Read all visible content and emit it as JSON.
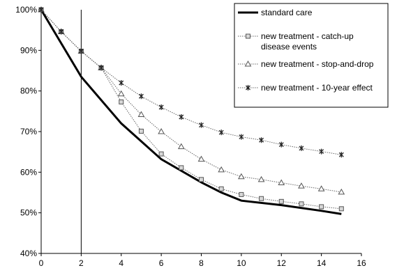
{
  "chart_data": {
    "type": "line",
    "title": "",
    "xlabel": "",
    "ylabel": "",
    "xlim": [
      0,
      16
    ],
    "ylim": [
      0.4,
      1.0
    ],
    "x_ticks": [
      "0",
      "2",
      "4",
      "6",
      "8",
      "10",
      "12",
      "14",
      "16"
    ],
    "y_ticks": [
      "40%",
      "50%",
      "60%",
      "70%",
      "80%",
      "90%",
      "100%"
    ],
    "grid": false,
    "legend_position": "top-right",
    "reference_line_x": 2,
    "series": [
      {
        "name": "standard care",
        "marker": "none",
        "color": "#000000",
        "x": [
          0,
          2,
          4,
          6,
          8,
          9,
          10,
          12,
          14,
          15
        ],
        "y": [
          1.0,
          0.835,
          0.72,
          0.632,
          0.575,
          0.55,
          0.53,
          0.519,
          0.505,
          0.497
        ]
      },
      {
        "name": "new treatment - catch-up disease events",
        "marker": "square",
        "color": "#555555",
        "x": [
          0,
          1,
          2,
          3,
          4,
          5,
          6,
          7,
          8,
          9,
          10,
          11,
          12,
          13,
          14,
          15
        ],
        "y": [
          1.0,
          0.946,
          0.898,
          0.857,
          0.773,
          0.701,
          0.645,
          0.611,
          0.582,
          0.559,
          0.545,
          0.535,
          0.528,
          0.522,
          0.515,
          0.51
        ]
      },
      {
        "name": "new treatment - stop-and-drop",
        "marker": "triangle",
        "color": "#555555",
        "x": [
          0,
          1,
          2,
          3,
          4,
          5,
          6,
          7,
          8,
          9,
          10,
          11,
          12,
          13,
          14,
          15
        ],
        "y": [
          1.0,
          0.946,
          0.898,
          0.857,
          0.793,
          0.742,
          0.7,
          0.663,
          0.632,
          0.606,
          0.589,
          0.582,
          0.574,
          0.566,
          0.559,
          0.551
        ]
      },
      {
        "name": "new treatment - 10-year effect",
        "marker": "star",
        "color": "#555555",
        "x": [
          0,
          1,
          2,
          3,
          4,
          5,
          6,
          7,
          8,
          9,
          10,
          11,
          12,
          13,
          14,
          15
        ],
        "y": [
          1.0,
          0.946,
          0.898,
          0.857,
          0.82,
          0.787,
          0.76,
          0.736,
          0.716,
          0.698,
          0.687,
          0.679,
          0.668,
          0.659,
          0.651,
          0.643
        ]
      }
    ],
    "legend": {
      "items": [
        {
          "lines": [
            "standard care"
          ]
        },
        {
          "lines": [
            "new treatment - catch-up",
            "disease events"
          ]
        },
        {
          "lines": [
            "new treatment - stop-and-drop"
          ]
        },
        {
          "lines": [
            "new treatment - 10-year effect"
          ]
        }
      ]
    }
  }
}
